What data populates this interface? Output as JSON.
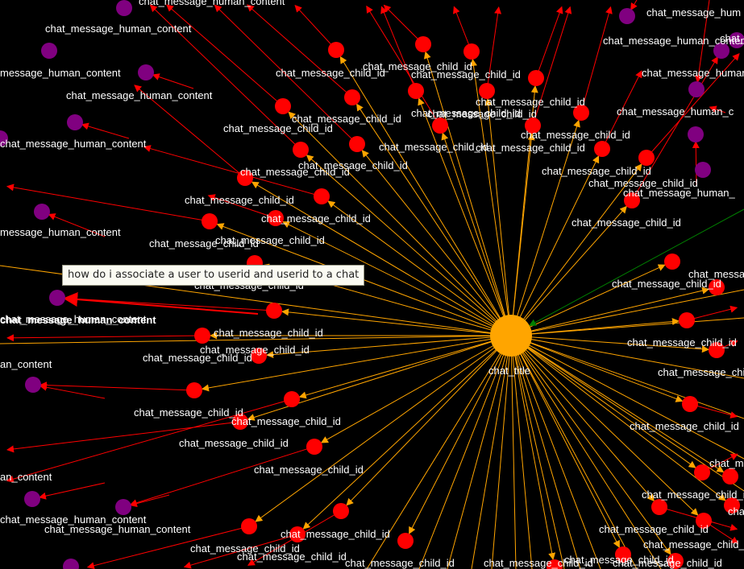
{
  "palette": {
    "background": "#000000",
    "root_node": "#ffa500",
    "child_node": "#ff0000",
    "human_node": "#800080",
    "orange_edge": "#ffa500",
    "red_edge": "#ff0000",
    "green_edge": "#008000",
    "label": "#ffffff"
  },
  "root": {
    "label": "chat_title"
  },
  "highlighted": {
    "label": "chat_message_human_content"
  },
  "tooltip": {
    "text": "how do i associate a user to userid and userid to a chat"
  },
  "labels": {
    "child": "chat_message_child_id",
    "human": "chat_message_human_content",
    "child_stacked": "chat_message_child_id",
    "human_truncated_left": "uman_content",
    "human_truncated_a": "message_human_content",
    "human_truncated_b": "essage_human_content",
    "human_truncated_c": "an_content",
    "human_truncated_d": "ssage_human_content",
    "human_truncated_right": "chat_message_hum",
    "human_truncated_right2": "chat_message_human_c",
    "human_truncated_right3": "chat_message_human_",
    "child_truncated_right": "chat_message_chi"
  }
}
